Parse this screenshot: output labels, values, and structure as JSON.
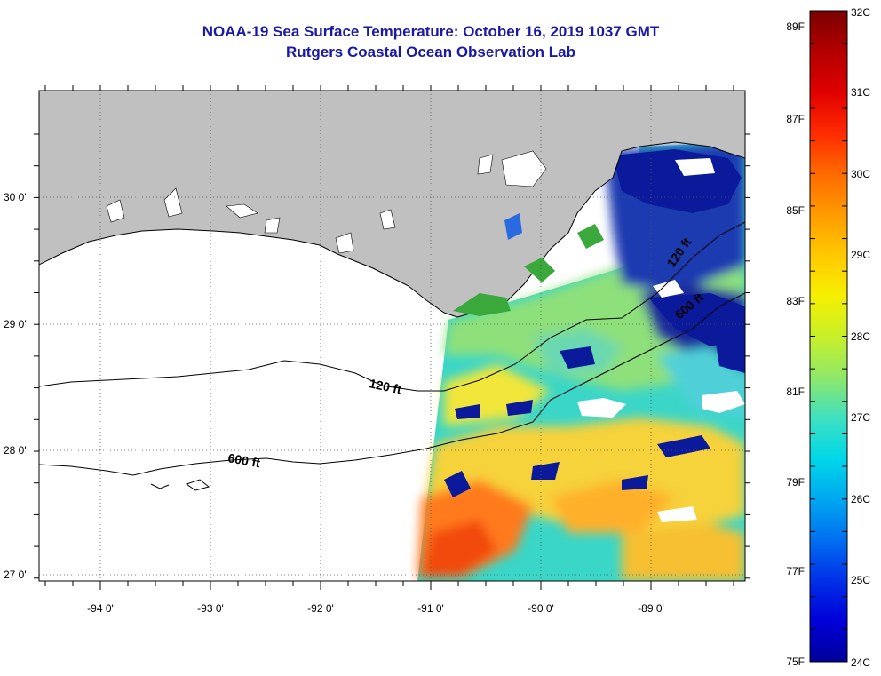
{
  "title": "NOAA-19 Sea Surface Temperature:  October 16, 2019 1037 GMT",
  "subtitle": "Rutgers Coastal Ocean Observation Lab",
  "x_tick_labels": [
    "-94 0'",
    "-93 0'",
    "-92 0'",
    "-91 0'",
    "-90 0'",
    "-89 0'"
  ],
  "y_tick_labels": [
    "30 0'",
    "29 0'",
    "28 0'",
    "27 0'"
  ],
  "contour_labels": {
    "shelf_west": "120 ft",
    "slope_west": "600 ft",
    "shelf_east": "120 ft",
    "slope_east": "600 ft"
  },
  "colorbar": {
    "fahrenheit_labels": [
      "89F",
      "87F",
      "85F",
      "83F",
      "81F",
      "79F",
      "77F",
      "75F"
    ],
    "celsius_labels": [
      "32C",
      "31C",
      "30C",
      "29C",
      "28C",
      "27C",
      "26C",
      "25C",
      "24C"
    ],
    "colors": [
      "#7a0000",
      "#b30000",
      "#e00000",
      "#ff2a00",
      "#ff6a00",
      "#ff9a00",
      "#ffc800",
      "#f6f000",
      "#c8f028",
      "#90e868",
      "#40e0c0",
      "#00d8e8",
      "#00a8f0",
      "#0070f0",
      "#0030e8",
      "#0000d8",
      "#00009a"
    ]
  },
  "colors": {
    "land": "#c0c0c0",
    "title": "#1a1aa8",
    "cloud": "#ffffff",
    "cold_water": "#0a1a9a",
    "warm_water": "#ff8a1a",
    "mid_water": "#f0e830"
  }
}
